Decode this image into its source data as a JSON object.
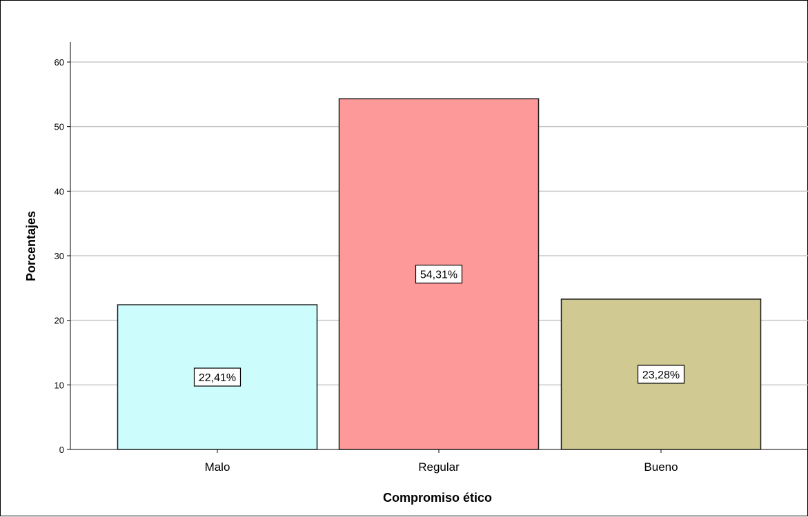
{
  "chart_data": {
    "type": "bar",
    "categories": [
      "Malo",
      "Regular",
      "Bueno"
    ],
    "values": [
      22.41,
      54.31,
      23.28
    ],
    "data_labels": [
      "22,41%",
      "54,31%",
      "23,28%"
    ],
    "colors": [
      "#ccfcfc",
      "#fd9999",
      "#d0ca92"
    ],
    "xlabel": "Compromiso ético",
    "ylabel": "Porcentajes",
    "ylim": [
      0,
      60
    ],
    "yticks": [
      0,
      10,
      20,
      30,
      40,
      50,
      60
    ],
    "grid": true,
    "legend": "none"
  }
}
